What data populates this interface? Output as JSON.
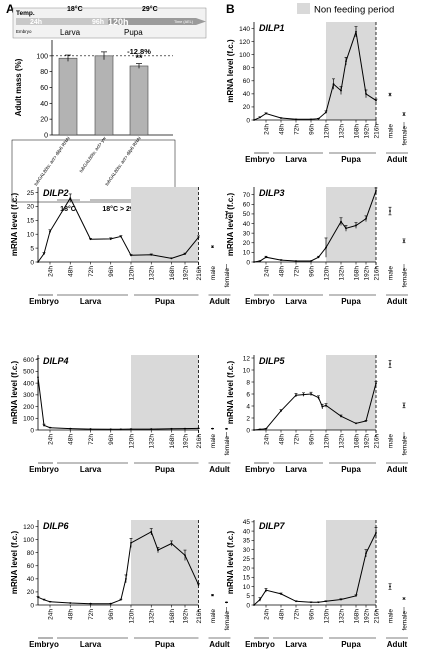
{
  "figure": {
    "panel_a_letter": "A",
    "panel_b_letter": "B",
    "legend_label": "Non feeding period",
    "legend_color": "#d9d9d9"
  },
  "timeline": {
    "temp_label": "Temp.",
    "temp_low": "18°C",
    "temp_high": "29°C",
    "marks": [
      "24h",
      "96h",
      "120h"
    ],
    "time_label": "Time (AEL)",
    "embryo_label": "Embryo",
    "larva_label": "Larva",
    "pupa_label": "Pupa"
  },
  "chart_a": {
    "type": "bar",
    "ylabel": "Adult mass (%)",
    "ylim": [
      0,
      120
    ],
    "yticks": [
      0,
      20,
      40,
      60,
      80,
      100
    ],
    "categories": [
      "tubGAL80ts; act> dilp6 RNAi",
      "tubGAL80ts; act> yw",
      "tubGAL80ts; act> dilp6 RNAi"
    ],
    "values": [
      97,
      100,
      87.2
    ],
    "errors": [
      4,
      5,
      3
    ],
    "annotation_pct": "-12.8%",
    "annotation_sig": "**",
    "group_labels": [
      "18°C",
      "18°C > 29°C"
    ],
    "bar_color": "#b3b3b3"
  },
  "dev_axis": {
    "ticks": [
      "24h",
      "48h",
      "72h",
      "96h",
      "120h",
      "132h",
      "168h",
      "192h",
      "216h"
    ],
    "stages": [
      "Embryo",
      "Larva",
      "Pupa",
      "Adult"
    ],
    "sex": [
      "male",
      "female"
    ],
    "ylabel": "mRNA level (f.c.)"
  },
  "chart_data": [
    {
      "type": "bar",
      "title": "",
      "ylabel": "Adult mass (%)",
      "categories": [
        "tubGAL80ts; act> dilp6 RNAi (18°C)",
        "tubGAL80ts; act> yw (18°C > 29°C)",
        "tubGAL80ts; act> dilp6 RNAi (18°C > 29°C)"
      ],
      "values": [
        97,
        100,
        87.2
      ],
      "ylim": [
        0,
        120
      ]
    },
    {
      "type": "line",
      "title": "DILP1",
      "ylabel": "mRNA level (f.c.)",
      "x": [
        0,
        12,
        24,
        48,
        72,
        96,
        108,
        120,
        126,
        132,
        144,
        168,
        192,
        216
      ],
      "y": [
        0,
        4,
        10,
        3,
        1,
        1,
        2,
        12,
        55,
        45,
        90,
        135,
        40,
        30
      ],
      "err": [
        0,
        1,
        1,
        0.5,
        0.3,
        0.3,
        0.5,
        2,
        8,
        6,
        6,
        8,
        6,
        2
      ],
      "male": 39,
      "male_err": 2,
      "female": 9,
      "female_err": 2,
      "yticks": [
        0,
        20,
        40,
        60,
        80,
        100,
        120,
        140
      ],
      "ylim": [
        0,
        150
      ]
    },
    {
      "type": "line",
      "title": "DILP2",
      "ylabel": "mRNA level (f.c.)",
      "x": [
        0,
        12,
        24,
        48,
        72,
        96,
        108,
        120,
        132,
        168,
        192,
        216
      ],
      "y": [
        0,
        3,
        11,
        23,
        8.2,
        8.3,
        9.2,
        2.4,
        2.6,
        1.3,
        2.9,
        8.9
      ],
      "err": [
        0,
        0.4,
        0.6,
        1.5,
        0.3,
        0.4,
        0.3,
        0.3,
        0.3,
        0.2,
        0.3,
        0.5
      ],
      "male": 5.5,
      "male_err": 0.3,
      "female": 17,
      "female_err": 1.2,
      "yticks": [
        0,
        5,
        10,
        15,
        20,
        25
      ],
      "ylim": [
        0,
        27
      ]
    },
    {
      "type": "line",
      "title": "DILP3",
      "ylabel": "mRNA level (f.c.)",
      "x": [
        0,
        12,
        24,
        48,
        72,
        96,
        108,
        120,
        132,
        144,
        168,
        192,
        216
      ],
      "y": [
        0,
        1,
        5,
        2,
        1,
        1,
        5,
        15,
        42,
        35,
        38,
        45,
        74
      ],
      "err": [
        0,
        0.3,
        1,
        0.4,
        0.2,
        0.2,
        1,
        10,
        4,
        3,
        3,
        3,
        3
      ],
      "male": 53,
      "male_err": 4,
      "female": 22,
      "female_err": 2,
      "yticks": [
        0,
        10,
        20,
        30,
        40,
        50,
        60,
        70
      ],
      "ylim": [
        0,
        78
      ]
    },
    {
      "type": "line",
      "title": "DILP4",
      "ylabel": "mRNA level (f.c.)",
      "x": [
        0,
        12,
        24,
        48,
        72,
        96,
        108,
        120,
        132,
        168,
        192,
        216
      ],
      "y": [
        450,
        40,
        20,
        12,
        8,
        6,
        6,
        8,
        8,
        10,
        12,
        14
      ],
      "err": [
        160,
        10,
        3,
        2,
        1,
        1,
        1,
        1,
        1,
        1,
        1,
        1
      ],
      "male": 12,
      "male_err": 2,
      "female": 10,
      "female_err": 2,
      "yticks": [
        0,
        100,
        200,
        300,
        400,
        500,
        600
      ],
      "ylim": [
        0,
        640
      ]
    },
    {
      "type": "line",
      "title": "DILP5",
      "ylabel": "mRNA level (f.c.)",
      "x": [
        0,
        12,
        24,
        48,
        72,
        84,
        96,
        108,
        114,
        120,
        132,
        168,
        192,
        216
      ],
      "y": [
        0,
        0.1,
        0.2,
        3.2,
        5.8,
        5.9,
        6,
        5.4,
        3.9,
        4.1,
        2.3,
        1.1,
        1.5,
        7.8
      ],
      "err": [
        0,
        0.05,
        0.05,
        0.2,
        0.3,
        0.3,
        0.3,
        0.3,
        0.4,
        0.3,
        0.2,
        0.1,
        0.1,
        0.3
      ],
      "male": 11,
      "male_err": 0.6,
      "female": 4.1,
      "female_err": 0.4,
      "yticks": [
        0,
        2,
        4,
        6,
        8,
        10,
        12
      ],
      "ylim": [
        0,
        12.5
      ]
    },
    {
      "type": "line",
      "title": "DILP6",
      "ylabel": "mRNA level (f.c.)",
      "x": [
        0,
        12,
        24,
        48,
        72,
        96,
        108,
        114,
        120,
        132,
        144,
        168,
        192,
        216
      ],
      "y": [
        12,
        8,
        5,
        3,
        2,
        2,
        8,
        40,
        95,
        112,
        84,
        94,
        76,
        31
      ],
      "err": [
        1,
        1,
        0.5,
        0.4,
        0.3,
        0.3,
        1,
        6,
        7,
        5,
        4,
        4,
        8,
        2
      ],
      "male": 15,
      "male_err": 1,
      "female": 4,
      "female_err": 0.5,
      "yticks": [
        0,
        20,
        40,
        60,
        80,
        100,
        120
      ],
      "ylim": [
        0,
        130
      ]
    },
    {
      "type": "line",
      "title": "DILP7",
      "ylabel": "mRNA level (f.c.)",
      "x": [
        0,
        12,
        24,
        48,
        72,
        96,
        108,
        120,
        132,
        168,
        192,
        216
      ],
      "y": [
        0,
        3,
        8,
        6,
        2,
        1.5,
        1.5,
        2,
        3,
        5,
        28,
        39
      ],
      "err": [
        0,
        1,
        1,
        0.5,
        0.3,
        0.2,
        0.2,
        0.3,
        0.4,
        0.5,
        2,
        3
      ],
      "male": 10,
      "male_err": 1.5,
      "female": 3.5,
      "female_err": 0.4,
      "yticks": [
        0,
        5,
        10,
        15,
        20,
        25,
        30,
        35,
        40,
        45
      ],
      "ylim": [
        0,
        46
      ]
    }
  ]
}
